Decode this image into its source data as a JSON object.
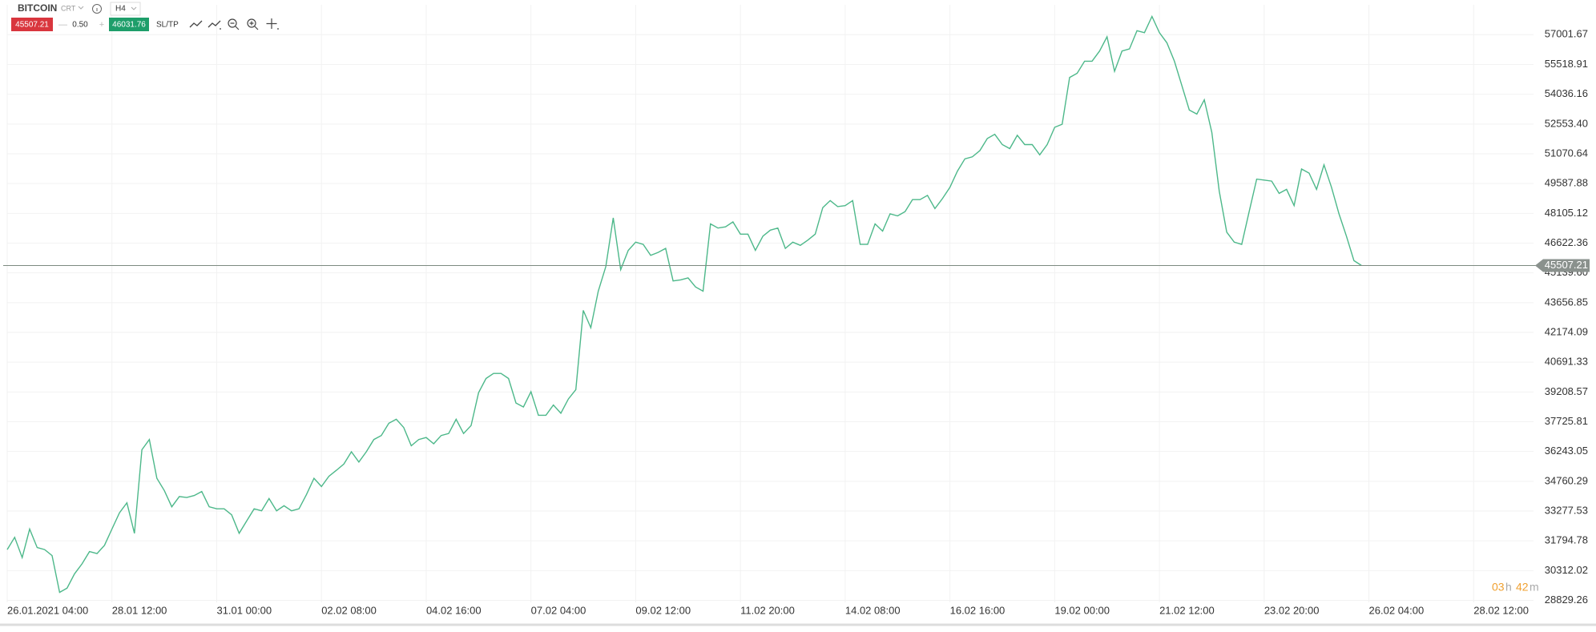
{
  "toolbar": {
    "symbol": "BITCOIN",
    "mode": "CRT",
    "timeframe": "H4",
    "sell": "45507.21",
    "minus": "—",
    "volume": "0.50",
    "plus": "+",
    "buy": "46031.76",
    "sltp": "SL/TP"
  },
  "countdown": {
    "hours": "03",
    "h": "h",
    "minutes": "42",
    "m": "m"
  },
  "chart_data": {
    "type": "line",
    "color": "#4db88a",
    "grid": true,
    "current_price": 45507.21,
    "values": [
      31360,
      31970,
      30960,
      32380,
      31460,
      31360,
      31060,
      29230,
      29440,
      30150,
      30650,
      31260,
      31160,
      31570,
      32380,
      33190,
      33690,
      32170,
      36330,
      36840,
      34910,
      34300,
      33490,
      34000,
      33950,
      34050,
      34250,
      33490,
      33390,
      33390,
      33090,
      32170,
      32780,
      33390,
      33290,
      33900,
      33290,
      33540,
      33290,
      33390,
      34100,
      34910,
      34500,
      35010,
      35310,
      35620,
      36230,
      35720,
      36230,
      36840,
      37040,
      37650,
      37850,
      37440,
      36530,
      36840,
      36940,
      36630,
      37040,
      37140,
      37850,
      37140,
      37540,
      39170,
      39880,
      40130,
      40130,
      39880,
      38660,
      38460,
      39220,
      38050,
      38050,
      38560,
      38150,
      38860,
      39320,
      43270,
      42410,
      44230,
      45450,
      47880,
      45300,
      46260,
      46670,
      46560,
      46010,
      46160,
      46360,
      44740,
      44790,
      44890,
      44440,
      44230,
      47580,
      47370,
      47430,
      47680,
      47070,
      47070,
      46260,
      46970,
      47270,
      47370,
      46360,
      46670,
      46510,
      46770,
      47070,
      48390,
      48740,
      48440,
      48490,
      48740,
      46560,
      46560,
      47580,
      47220,
      48080,
      47980,
      48190,
      48790,
      48790,
      49000,
      48340,
      48840,
      49400,
      50210,
      50820,
      50920,
      51230,
      51830,
      52040,
      51530,
      51330,
      51990,
      51530,
      51530,
      51020,
      51530,
      52390,
      52540,
      54870,
      55080,
      55680,
      55680,
      56190,
      56900,
      55180,
      56190,
      56290,
      57200,
      57100,
      57910,
      57100,
      56600,
      55680,
      54470,
      53250,
      53050,
      53760,
      52140,
      49200,
      47170,
      46670,
      46560,
      48190,
      49810,
      49760,
      49710,
      49100,
      49300,
      48490,
      50310,
      50110,
      49300,
      50520,
      49400,
      48080,
      46970,
      45750,
      45507.21
    ],
    "xlim": [
      0,
      204
    ],
    "xticks": [
      {
        "value": 0,
        "label": "26.01.2021 04:00"
      },
      {
        "value": 14,
        "label": "28.01 12:00"
      },
      {
        "value": 28,
        "label": "31.01 00:00"
      },
      {
        "value": 42,
        "label": "02.02 08:00"
      },
      {
        "value": 56,
        "label": "04.02 16:00"
      },
      {
        "value": 70,
        "label": "07.02 04:00"
      },
      {
        "value": 84,
        "label": "09.02 12:00"
      },
      {
        "value": 98,
        "label": "11.02 20:00"
      },
      {
        "value": 112,
        "label": "14.02 08:00"
      },
      {
        "value": 126,
        "label": "16.02 16:00"
      },
      {
        "value": 140,
        "label": "19.02 00:00"
      },
      {
        "value": 154,
        "label": "21.02 12:00"
      },
      {
        "value": 168,
        "label": "23.02 20:00"
      },
      {
        "value": 182,
        "label": "26.02 04:00"
      },
      {
        "value": 196,
        "label": "28.02 12:00"
      }
    ],
    "ylim": [
      28730,
      58490
    ],
    "yticks": [
      57001.67,
      55518.91,
      54036.16,
      {
        "value": 52553.4,
        "label": "52553.40"
      },
      51070.64,
      49587.88,
      48105.12,
      46622.36,
      {
        "value": 45139.6,
        "label": "45139.60"
      },
      43656.85,
      42174.09,
      40691.33,
      39208.57,
      37725.81,
      36243.05,
      34760.29,
      33277.53,
      31794.78,
      30312.02,
      28829.26
    ]
  }
}
